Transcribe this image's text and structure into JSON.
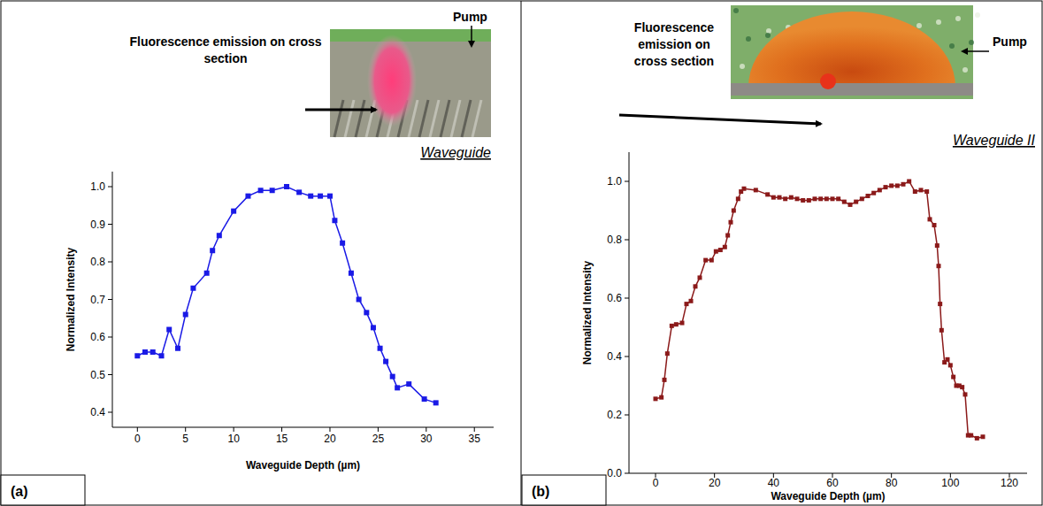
{
  "chart_data": [
    {
      "type": "line",
      "panel": "(a)",
      "x_label": "Waveguide Depth (µm)",
      "y_label": "Normalized Intensity",
      "annotations": [
        "Pump",
        "Fluorescence emission on cross section",
        "Waveguide"
      ],
      "color": "#1a1ae6",
      "marker": "square",
      "line_style": "solid",
      "x": [
        0,
        0.8,
        1.6,
        2.5,
        3.3,
        4.2,
        5,
        5.8,
        7.2,
        7.8,
        8.5,
        10,
        11.5,
        12.8,
        14,
        15.5,
        16.8,
        18,
        19,
        20,
        20.5,
        21.3,
        22.2,
        23,
        23.8,
        24.5,
        25.2,
        25.8,
        26.5,
        27,
        28.2,
        29.8,
        31
      ],
      "values": [
        0.55,
        0.56,
        0.56,
        0.55,
        0.62,
        0.57,
        0.66,
        0.73,
        0.77,
        0.83,
        0.87,
        0.935,
        0.975,
        0.99,
        0.99,
        1.0,
        0.985,
        0.975,
        0.975,
        0.975,
        0.91,
        0.85,
        0.77,
        0.7,
        0.665,
        0.625,
        0.57,
        0.535,
        0.495,
        0.465,
        0.475,
        0.435,
        0.425
      ],
      "xlim": [
        -2.6,
        37
      ],
      "ylim": [
        0.36,
        1.04
      ],
      "xticks": [
        0,
        5,
        10,
        15,
        20,
        25,
        30,
        35
      ],
      "yticks": [
        0.4,
        0.5,
        0.6,
        0.7,
        0.8,
        0.9,
        {
          "value": 1.0,
          "label": "1.0"
        }
      ]
    },
    {
      "type": "line",
      "panel": "(b)",
      "x_label": "Waveguide Depth (µm)",
      "y_label": "Normalized Intensity",
      "annotations": [
        "Pump",
        "Fluorescence emission on cross section",
        "Waveguide II"
      ],
      "color": "#8b1a1a",
      "marker": "square",
      "line_style": "solid",
      "x": [
        0,
        2,
        3,
        4,
        5.5,
        7,
        9,
        10.5,
        12,
        13.5,
        15,
        17,
        19,
        20.5,
        22,
        23.5,
        24.5,
        25.5,
        26.5,
        28,
        29,
        30,
        34,
        38,
        40,
        42,
        44,
        46,
        48,
        50,
        52,
        54,
        56,
        58,
        60,
        62,
        64,
        66,
        68,
        70,
        72,
        74,
        76,
        78,
        80,
        82,
        84,
        86,
        88,
        90,
        92,
        93,
        94.5,
        95.5,
        96,
        96.5,
        97,
        98,
        99,
        100,
        101,
        102,
        103,
        104,
        105,
        106,
        107,
        109,
        111
      ],
      "values": [
        0.255,
        0.26,
        0.32,
        0.41,
        0.505,
        0.51,
        0.515,
        0.58,
        0.59,
        0.64,
        0.67,
        0.73,
        0.73,
        0.76,
        0.765,
        0.775,
        0.815,
        0.86,
        0.9,
        0.94,
        0.965,
        0.975,
        0.97,
        0.955,
        0.945,
        0.945,
        0.94,
        0.945,
        0.94,
        0.935,
        0.935,
        0.94,
        0.94,
        0.94,
        0.94,
        0.94,
        0.93,
        0.92,
        0.93,
        0.94,
        0.95,
        0.96,
        0.97,
        0.98,
        0.985,
        0.985,
        0.99,
        1.0,
        0.965,
        0.97,
        0.965,
        0.87,
        0.85,
        0.78,
        0.71,
        0.58,
        0.49,
        0.38,
        0.39,
        0.37,
        0.33,
        0.3,
        0.3,
        0.295,
        0.27,
        0.13,
        0.13,
        0.12,
        0.125
      ],
      "xlim": [
        -9,
        126
      ],
      "ylim": [
        0,
        1.1
      ],
      "xticks": [
        0,
        20,
        40,
        60,
        80,
        100,
        120
      ],
      "yticks": [
        {
          "value": 0.0,
          "label": "0.0"
        },
        0.2,
        0.4,
        0.6,
        0.8,
        {
          "value": 1.0,
          "label": "1.0"
        }
      ]
    }
  ]
}
